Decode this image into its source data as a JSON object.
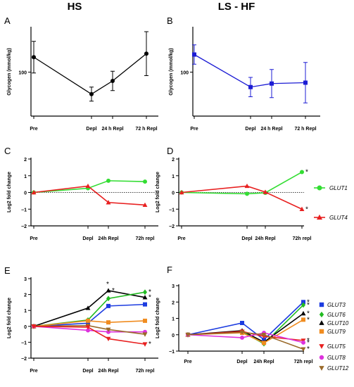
{
  "headers": {
    "left": "HS",
    "right": "LS - HF"
  },
  "chart_data": [
    {
      "panel": "A",
      "type": "line",
      "ylabel": "Glycogen (mmol/kg)",
      "ylim": [
        50,
        150
      ],
      "yticks": [
        100
      ],
      "categories": [
        "Pre",
        "Depl",
        "24 h Repl",
        "72 h Repl"
      ],
      "series": [
        {
          "color": "#000000",
          "marker": "circle",
          "values": [
            117,
            75,
            90,
            121
          ],
          "error": [
            18,
            8,
            11,
            25
          ]
        }
      ]
    },
    {
      "panel": "B",
      "type": "line",
      "ylabel": "Glycogen (mmol/kg)",
      "ylim": [
        50,
        150
      ],
      "yticks": [
        100
      ],
      "categories": [
        "Pre",
        "Depl",
        "24 h Repl",
        "72 h Repl"
      ],
      "series": [
        {
          "color": "#1c1cd4",
          "marker": "square",
          "values": [
            120,
            83,
            87,
            88
          ],
          "error": [
            11,
            11,
            16,
            23
          ]
        }
      ]
    },
    {
      "panel": "C",
      "type": "line",
      "ylabel": "Log2 fold change",
      "ylim": [
        -2,
        2
      ],
      "yticks": [
        -2,
        -1,
        0,
        1,
        2
      ],
      "zero_line": true,
      "categories": [
        "Pre",
        "Depl",
        "24h Repl",
        "72h repl"
      ],
      "series": [
        {
          "color": "#33dd33",
          "marker": "circle",
          "values": [
            0,
            0.25,
            0.7,
            0.65
          ],
          "sig": []
        },
        {
          "color": "#e82020",
          "marker": "triangle",
          "values": [
            0,
            0.38,
            -0.6,
            -0.75
          ],
          "sig": []
        }
      ]
    },
    {
      "panel": "D",
      "type": "line",
      "ylabel": "Log2 fold change",
      "ylim": [
        -2,
        2
      ],
      "yticks": [
        -2,
        -1,
        0,
        1,
        2
      ],
      "zero_line": true,
      "categories": [
        "Pre",
        "Depl",
        "24h Repl",
        "72h repl"
      ],
      "legend": [
        {
          "name": "GLUT1",
          "color": "#33dd33",
          "marker": "circle"
        },
        {
          "name": "GLUT4",
          "color": "#e82020",
          "marker": "triangle"
        }
      ],
      "series": [
        {
          "name": "GLUT1",
          "color": "#33dd33",
          "marker": "circle",
          "values": [
            0,
            -0.08,
            -0.02,
            1.22
          ],
          "sig": [
            3
          ]
        },
        {
          "name": "GLUT4",
          "color": "#e82020",
          "marker": "triangle",
          "values": [
            0,
            0.38,
            0.02,
            -1.0
          ],
          "sig": [
            3
          ]
        }
      ]
    },
    {
      "panel": "E",
      "type": "line",
      "ylabel": "Log2 fold change",
      "ylim": [
        -2,
        3
      ],
      "yticks": [
        -2,
        -1,
        0,
        1,
        2,
        3
      ],
      "categories": [
        "Pre",
        "Depl",
        "24h Repl",
        "72h repl"
      ],
      "series": [
        {
          "color": "#000000",
          "marker": "triangle",
          "values": [
            0,
            1.15,
            2.25,
            1.82
          ],
          "sig": [
            2,
            3
          ]
        },
        {
          "color": "#22bb22",
          "marker": "diamond",
          "values": [
            0,
            0.4,
            1.75,
            2.15
          ],
          "sig": [
            3
          ]
        },
        {
          "color": "#1c3ce0",
          "marker": "square",
          "values": [
            0,
            0.2,
            1.28,
            1.38
          ],
          "sig": []
        },
        {
          "color": "#f08c20",
          "marker": "square",
          "values": [
            0,
            0.35,
            0.25,
            0.35
          ],
          "sig": []
        },
        {
          "color": "#dd33dd",
          "marker": "circle",
          "values": [
            0,
            -0.25,
            -0.35,
            -0.35
          ],
          "sig": []
        },
        {
          "color": "#9a6a2a",
          "marker": "triangle-down",
          "values": [
            0,
            0.05,
            -0.2,
            -0.5
          ],
          "sig": []
        },
        {
          "color": "#e82020",
          "marker": "triangle-down",
          "values": [
            0,
            -0.05,
            -0.78,
            -1.12
          ],
          "sig": [
            3
          ]
        }
      ]
    },
    {
      "panel": "F",
      "type": "line",
      "ylabel": "Log2 fold change",
      "ylim": [
        -1,
        3
      ],
      "yticks": [
        -1,
        0,
        1,
        2,
        3
      ],
      "categories": [
        "Pre",
        "Depl",
        "24h Repl",
        "72h repl"
      ],
      "legend": [
        {
          "name": "GLUT3",
          "color": "#1c3ce0",
          "marker": "square"
        },
        {
          "name": "GLUT6",
          "color": "#22bb22",
          "marker": "diamond"
        },
        {
          "name": "GLUT10",
          "color": "#000000",
          "marker": "triangle"
        },
        {
          "name": "GLUT9",
          "color": "#f08c20",
          "marker": "square"
        },
        {
          "name": "GLUT5",
          "color": "#e82020",
          "marker": "triangle-down"
        },
        {
          "name": "GLUT8",
          "color": "#dd33dd",
          "marker": "circle"
        },
        {
          "name": "GLUT12",
          "color": "#9a6a2a",
          "marker": "triangle-down"
        }
      ],
      "series": [
        {
          "name": "GLUT3",
          "color": "#1c3ce0",
          "marker": "square",
          "values": [
            0,
            0.72,
            -0.3,
            2.0
          ],
          "sig": [
            3
          ]
        },
        {
          "name": "GLUT6",
          "color": "#22bb22",
          "marker": "diamond",
          "values": [
            0,
            0.18,
            -0.55,
            1.82
          ],
          "sig": [
            3
          ]
        },
        {
          "name": "GLUT10",
          "color": "#000000",
          "marker": "triangle",
          "values": [
            0,
            0.25,
            -0.45,
            1.3
          ],
          "sig": [
            3
          ]
        },
        {
          "name": "GLUT9",
          "color": "#f08c20",
          "marker": "square",
          "values": [
            0,
            0.12,
            -0.5,
            0.92
          ],
          "sig": [
            3
          ]
        },
        {
          "name": "GLUT5",
          "color": "#e82020",
          "marker": "triangle-down",
          "values": [
            0,
            0.2,
            -0.1,
            -0.35
          ],
          "sig": [
            3
          ]
        },
        {
          "name": "GLUT8",
          "color": "#dd33dd",
          "marker": "circle",
          "values": [
            0,
            -0.18,
            0.12,
            -0.48
          ],
          "sig": [
            3
          ]
        },
        {
          "name": "GLUT12",
          "color": "#9a6a2a",
          "marker": "triangle-down",
          "values": [
            0,
            0.15,
            0.0,
            -0.88
          ],
          "sig": [
            3
          ]
        }
      ]
    }
  ]
}
